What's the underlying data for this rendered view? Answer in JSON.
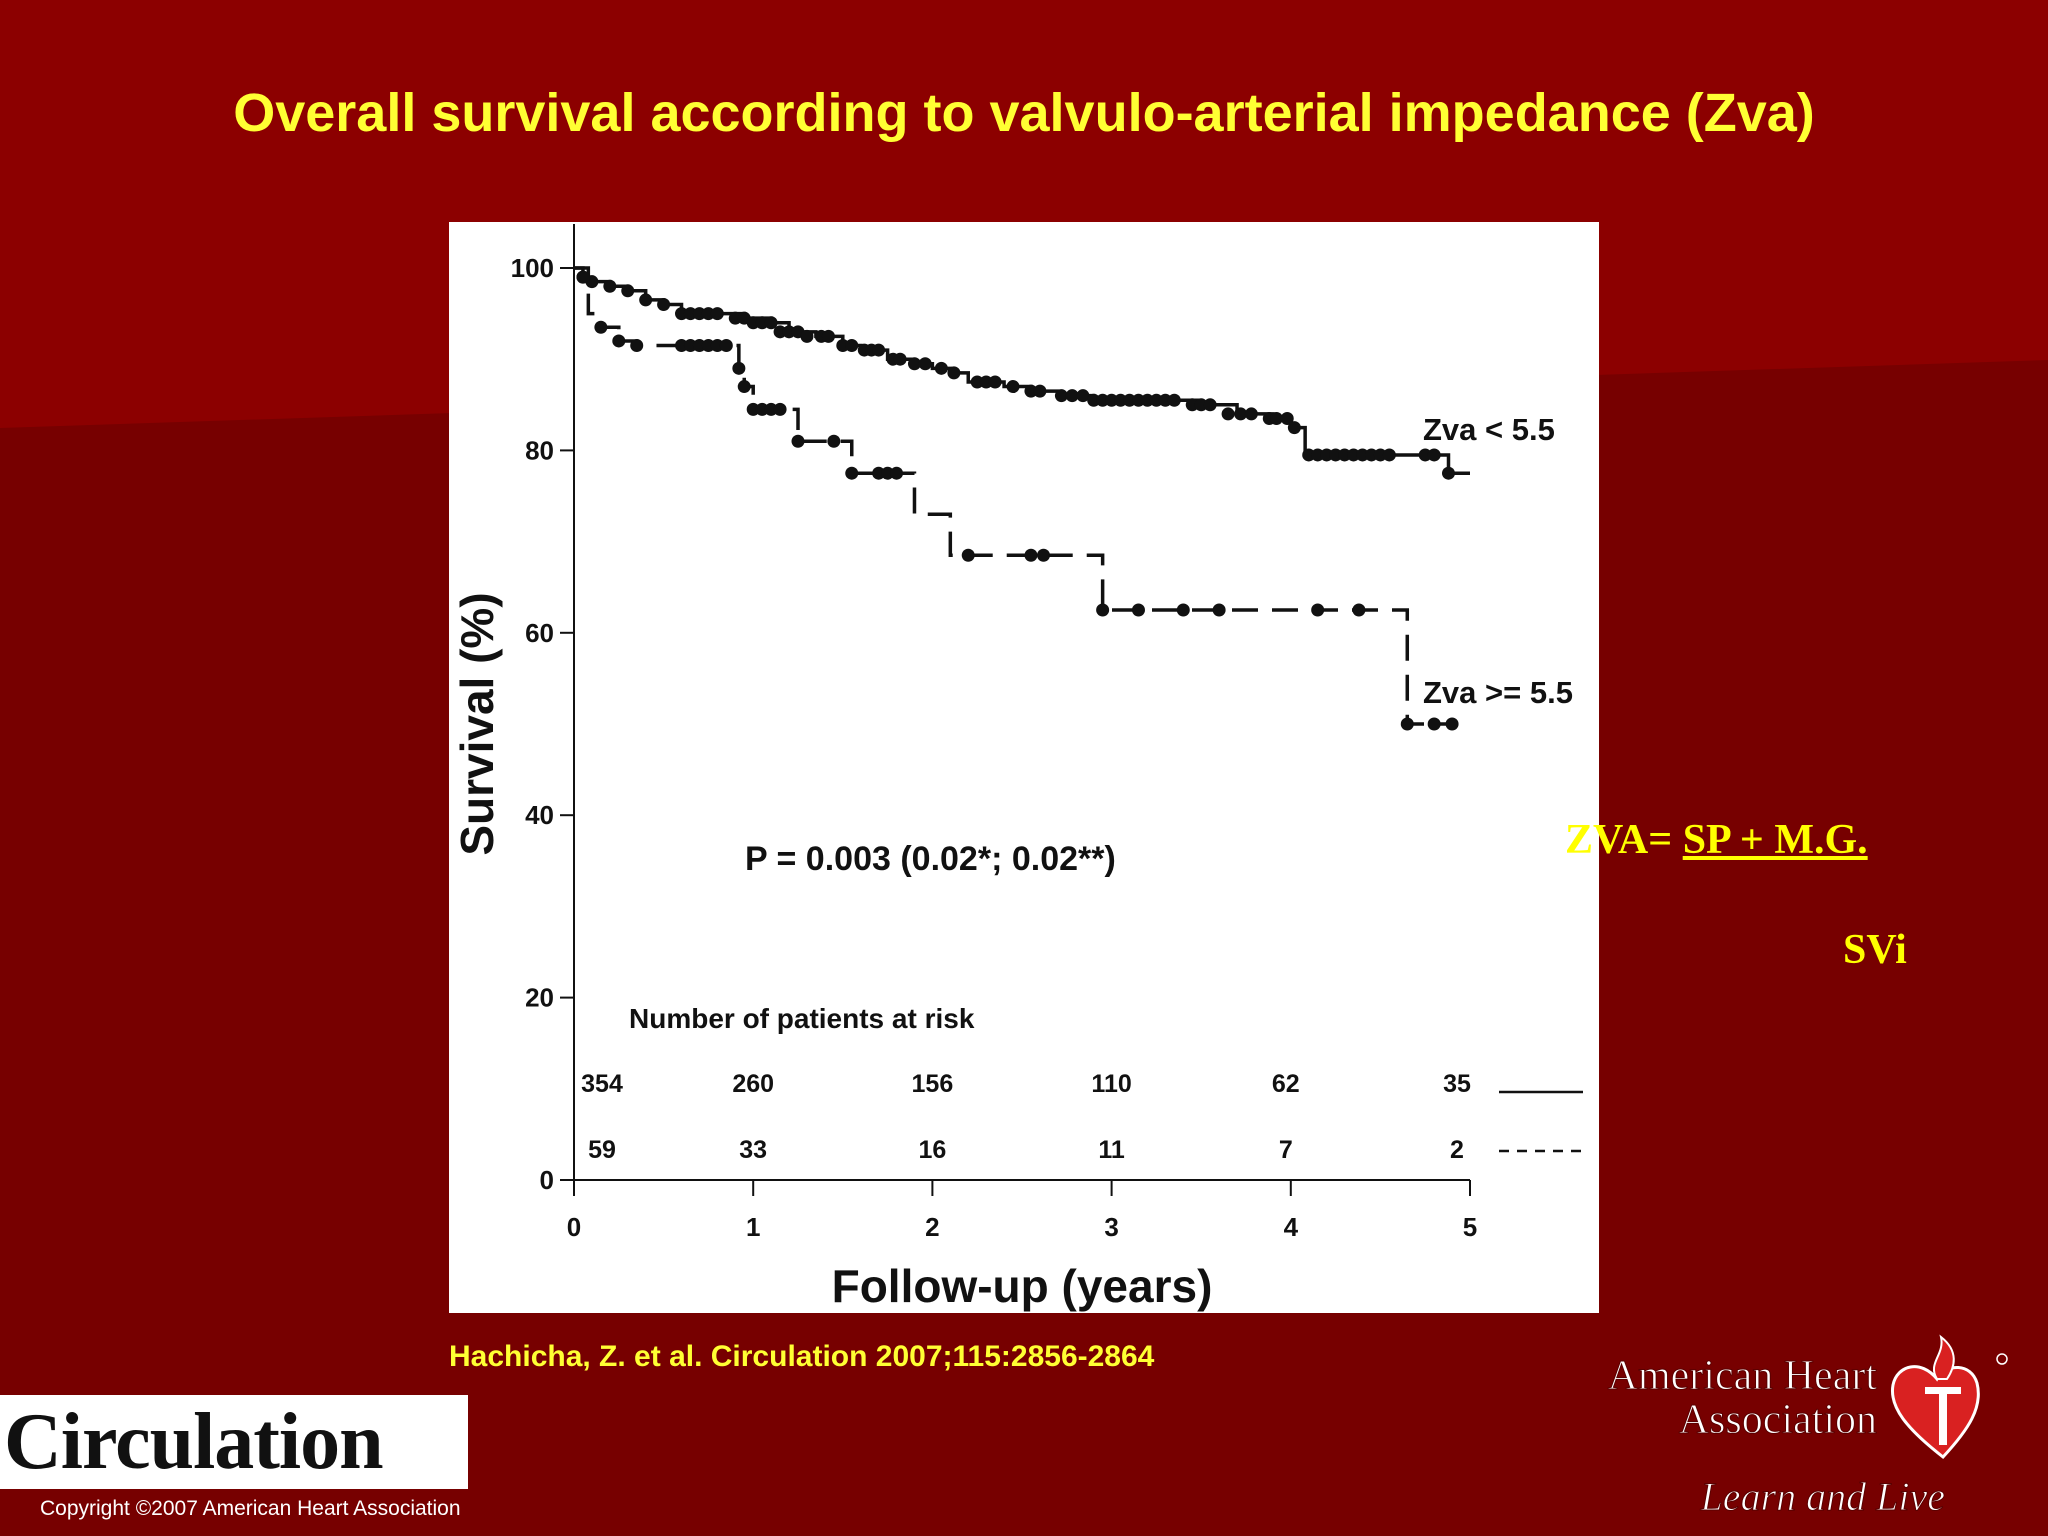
{
  "slide": {
    "title": "Overall survival according to valvulo-arterial impedance (Zva)",
    "citation": "Hachicha, Z. et al. Circulation 2007;115:2856-2864",
    "formula_prefix": "ZVA= ",
    "formula_numerator": "SP + M.G.",
    "formula_denominator": "SVi",
    "journal_logo": "Circulation",
    "copyright": "Copyright ©2007 American Heart Association",
    "publisher_logo_line1": "American Heart",
    "publisher_logo_line2": "Association",
    "publisher_tagline": "Learn and Live",
    "colors": {
      "background": "#770000",
      "background_wedge": "#8c0000",
      "title_yellow": "#ffff33",
      "aha_red": "#d92121"
    }
  },
  "chart_data": {
    "type": "line",
    "title": "",
    "xlabel": "Follow-up (years)",
    "ylabel": "Survival (%)",
    "xlim": [
      0,
      5
    ],
    "ylim": [
      0,
      100
    ],
    "x_ticks": [
      "0",
      "1",
      "2",
      "3",
      "4",
      "5"
    ],
    "y_ticks": [
      "0",
      "20",
      "40",
      "60",
      "80",
      "100"
    ],
    "grid": false,
    "annotation": "P = 0.003 (0.02*; 0.02**)",
    "series": [
      {
        "name": "Zva < 5.5",
        "style": "solid",
        "x": [
          0,
          0.05,
          0.1,
          0.2,
          0.3,
          0.4,
          0.5,
          0.6,
          0.8,
          0.95,
          1.1,
          1.2,
          1.35,
          1.5,
          1.6,
          1.75,
          1.9,
          2.0,
          2.1,
          2.2,
          2.4,
          2.55,
          2.7,
          2.9,
          3.1,
          3.3,
          3.5,
          3.7,
          3.9,
          4.0,
          4.08,
          4.3,
          4.5,
          4.65,
          4.78,
          4.88,
          5.0
        ],
        "y": [
          100,
          99,
          98.5,
          98,
          97.5,
          96.5,
          96,
          95,
          95,
          94.5,
          94,
          93,
          92.5,
          91.5,
          91,
          90,
          89.5,
          89,
          88.5,
          87.5,
          87,
          86.5,
          86,
          85.5,
          85.5,
          85.5,
          85,
          84,
          83.5,
          82.5,
          79.5,
          79.5,
          79.5,
          79.5,
          79.5,
          77.5,
          77.5
        ],
        "censor_x": [
          0.05,
          0.1,
          0.2,
          0.3,
          0.4,
          0.5,
          0.6,
          0.65,
          0.7,
          0.75,
          0.8,
          0.9,
          0.95,
          1.0,
          1.05,
          1.1,
          1.15,
          1.2,
          1.25,
          1.3,
          1.38,
          1.42,
          1.5,
          1.55,
          1.62,
          1.66,
          1.7,
          1.78,
          1.82,
          1.9,
          1.96,
          2.05,
          2.12,
          2.25,
          2.3,
          2.35,
          2.45,
          2.55,
          2.6,
          2.72,
          2.78,
          2.84,
          2.9,
          2.95,
          3.0,
          3.05,
          3.1,
          3.15,
          3.2,
          3.25,
          3.3,
          3.35,
          3.45,
          3.5,
          3.55,
          3.65,
          3.72,
          3.78,
          3.88,
          3.92,
          3.98,
          4.02,
          4.1,
          4.15,
          4.2,
          4.25,
          4.3,
          4.35,
          4.4,
          4.45,
          4.5,
          4.55,
          4.75,
          4.8,
          4.88
        ],
        "censor_y": [
          99,
          98.5,
          98,
          97.5,
          96.5,
          96,
          95,
          95,
          95,
          95,
          95,
          94.5,
          94.5,
          94,
          94,
          94,
          93,
          93,
          93,
          92.5,
          92.5,
          92.5,
          91.5,
          91.5,
          91,
          91,
          91,
          90,
          90,
          89.5,
          89.5,
          89,
          88.5,
          87.5,
          87.5,
          87.5,
          87,
          86.5,
          86.5,
          86,
          86,
          86,
          85.5,
          85.5,
          85.5,
          85.5,
          85.5,
          85.5,
          85.5,
          85.5,
          85.5,
          85.5,
          85,
          85,
          85,
          84,
          84,
          84,
          83.5,
          83.5,
          83.5,
          82.5,
          79.5,
          79.5,
          79.5,
          79.5,
          79.5,
          79.5,
          79.5,
          79.5,
          79.5,
          79.5,
          79.5,
          79.5,
          77.5
        ]
      },
      {
        "name": "Zva >= 5.5",
        "style": "dashed",
        "x": [
          0,
          0.08,
          0.15,
          0.25,
          0.35,
          0.9,
          0.92,
          0.95,
          1.0,
          1.2,
          1.25,
          1.5,
          1.55,
          1.85,
          1.9,
          2.05,
          2.1,
          2.9,
          2.95,
          4.6,
          4.65,
          4.9
        ],
        "y": [
          100,
          95,
          93.5,
          92,
          91.5,
          91.5,
          89,
          87,
          84.5,
          84.5,
          81,
          81,
          77.5,
          77.5,
          73,
          73,
          68.5,
          68.5,
          62.5,
          62.5,
          50,
          50
        ],
        "censor_x": [
          0.05,
          0.15,
          0.25,
          0.35,
          0.6,
          0.65,
          0.7,
          0.75,
          0.8,
          0.85,
          0.92,
          0.95,
          1.0,
          1.05,
          1.1,
          1.15,
          1.25,
          1.45,
          1.55,
          1.7,
          1.75,
          1.8,
          2.2,
          2.55,
          2.62,
          2.95,
          3.15,
          3.4,
          3.6,
          4.15,
          4.38,
          4.65,
          4.8,
          4.9
        ],
        "censor_y": [
          99,
          93.5,
          92,
          91.5,
          91.5,
          91.5,
          91.5,
          91.5,
          91.5,
          91.5,
          89,
          87,
          84.5,
          84.5,
          84.5,
          84.5,
          81,
          81,
          77.5,
          77.5,
          77.5,
          77.5,
          68.5,
          68.5,
          68.5,
          62.5,
          62.5,
          62.5,
          62.5,
          62.5,
          62.5,
          50,
          50,
          50
        ]
      }
    ],
    "risk_table": {
      "header": "Number of patients at risk",
      "rows": [
        {
          "series": "Zva < 5.5",
          "style": "solid",
          "counts": [
            "354",
            "260",
            "156",
            "110",
            "62",
            "35"
          ]
        },
        {
          "series": "Zva >= 5.5",
          "style": "dashed",
          "counts": [
            "59",
            "33",
            "16",
            "11",
            "7",
            "2"
          ]
        }
      ]
    }
  }
}
